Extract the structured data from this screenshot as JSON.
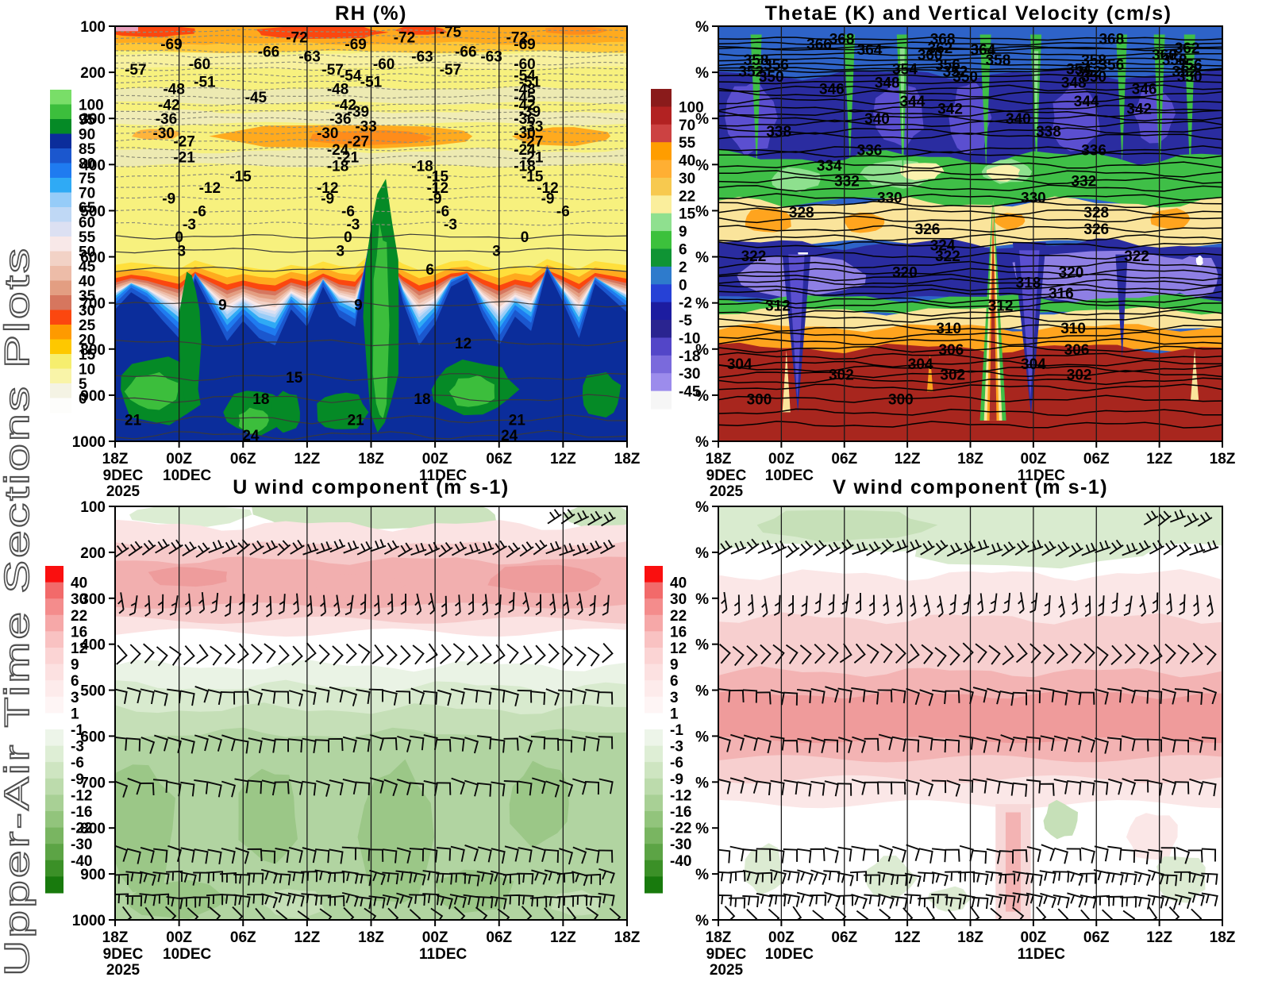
{
  "sidebar_title": "Upper-Air Time Sections Plots",
  "time_axis": {
    "tick_labels": [
      "18Z",
      "00Z",
      "06Z",
      "12Z",
      "18Z",
      "00Z",
      "06Z",
      "12Z",
      "18Z"
    ],
    "date_labels": [
      {
        "tick_index": 0,
        "lines": [
          "9DEC",
          "2025"
        ]
      },
      {
        "tick_index": 1,
        "lines": [
          "10DEC"
        ]
      },
      {
        "tick_index": 5,
        "lines": [
          "11DEC"
        ]
      }
    ]
  },
  "chart_data": [
    {
      "id": "rh",
      "type": "heatmap",
      "title": "RH (%)",
      "y_tick_labels": [
        "100",
        "200",
        "300",
        "400",
        "500",
        "600",
        "700",
        "800",
        "900",
        "1000"
      ],
      "colorbar": {
        "colors": [
          "#79DE68",
          "#3CBE3C",
          "#058A26",
          "#0B2D9B",
          "#1B57CE",
          "#1F7BF0",
          "#2FAAF5",
          "#96CCF8",
          "#BFD8F5",
          "#DCE0F2",
          "#F8E8E8",
          "#F2D2C6",
          "#EDBCA8",
          "#E39E82",
          "#D6765E",
          "#FB470F",
          "#FE9A00",
          "#FEC800",
          "#F6EE6E",
          "#F9F4A8",
          "#F4F3E4",
          "#FDFDFB"
        ],
        "labels": [
          "100",
          "95",
          "90",
          "85",
          "80",
          "75",
          "70",
          "65",
          "60",
          "55",
          "50",
          "45",
          "40",
          "35",
          "30",
          "25",
          "20",
          "15",
          "10",
          "5",
          "0"
        ]
      },
      "contour_labels": [
        {
          "v": "-75",
          "y": 0.012,
          "xs": [
            0.655
          ]
        },
        {
          "v": "-72",
          "y": 0.026,
          "xs": [
            0.355,
            0.565,
            0.785
          ]
        },
        {
          "v": "-69",
          "y": 0.042,
          "xs": [
            0.11,
            0.47,
            0.8
          ]
        },
        {
          "v": "-66",
          "y": 0.06,
          "xs": [
            0.3,
            0.685
          ]
        },
        {
          "v": "-63",
          "y": 0.072,
          "xs": [
            0.38,
            0.6,
            0.735
          ]
        },
        {
          "v": "-60",
          "y": 0.09,
          "xs": [
            0.165,
            0.525,
            0.8
          ]
        },
        {
          "v": "-57",
          "y": 0.103,
          "xs": [
            0.04,
            0.425,
            0.655
          ]
        },
        {
          "v": "-54",
          "y": 0.118,
          "xs": [
            0.46,
            0.8
          ]
        },
        {
          "v": "-51",
          "y": 0.133,
          "xs": [
            0.175,
            0.5,
            0.81
          ]
        },
        {
          "v": "-48",
          "y": 0.15,
          "xs": [
            0.115,
            0.435,
            0.8
          ]
        },
        {
          "v": "-45",
          "y": 0.17,
          "xs": [
            0.275,
            0.8
          ]
        },
        {
          "v": "-42",
          "y": 0.188,
          "xs": [
            0.105,
            0.45,
            0.8
          ]
        },
        {
          "v": "-39",
          "y": 0.205,
          "xs": [
            0.475,
            0.81
          ]
        },
        {
          "v": "-36",
          "y": 0.222,
          "xs": [
            0.1,
            0.44,
            0.8
          ]
        },
        {
          "v": "-33",
          "y": 0.24,
          "xs": [
            0.49,
            0.815
          ]
        },
        {
          "v": "-30",
          "y": 0.256,
          "xs": [
            0.095,
            0.415,
            0.8
          ]
        },
        {
          "v": "-27",
          "y": 0.276,
          "xs": [
            0.135,
            0.475,
            0.815
          ]
        },
        {
          "v": "-24",
          "y": 0.296,
          "xs": [
            0.435,
            0.8
          ]
        },
        {
          "v": "-21",
          "y": 0.315,
          "xs": [
            0.135,
            0.455,
            0.815
          ]
        },
        {
          "v": "-18",
          "y": 0.336,
          "xs": [
            0.435,
            0.6,
            0.8
          ]
        },
        {
          "v": "-15",
          "y": 0.36,
          "xs": [
            0.245,
            0.63,
            0.815
          ]
        },
        {
          "v": "-12",
          "y": 0.388,
          "xs": [
            0.185,
            0.415,
            0.63,
            0.845
          ]
        },
        {
          "v": "-9",
          "y": 0.414,
          "xs": [
            0.105,
            0.415,
            0.625,
            0.845
          ]
        },
        {
          "v": "-6",
          "y": 0.445,
          "xs": [
            0.165,
            0.455,
            0.64,
            0.875
          ]
        },
        {
          "v": "-3",
          "y": 0.476,
          "xs": [
            0.145,
            0.465,
            0.655
          ]
        },
        {
          "v": "0",
          "y": 0.507,
          "xs": [
            0.125,
            0.455,
            0.8
          ]
        },
        {
          "v": "3",
          "y": 0.54,
          "xs": [
            0.13,
            0.44,
            0.745
          ]
        },
        {
          "v": "6",
          "y": 0.585,
          "xs": [
            0.615
          ]
        },
        {
          "v": "9",
          "y": 0.67,
          "xs": [
            0.21,
            0.475
          ]
        },
        {
          "v": "12",
          "y": 0.763,
          "xs": [
            0.68
          ]
        },
        {
          "v": "15",
          "y": 0.845,
          "xs": [
            0.35
          ]
        },
        {
          "v": "18",
          "y": 0.897,
          "xs": [
            0.285,
            0.6
          ]
        },
        {
          "v": "21",
          "y": 0.947,
          "xs": [
            0.035,
            0.47,
            0.785
          ]
        },
        {
          "v": "24",
          "y": 0.985,
          "xs": [
            0.265,
            0.77
          ]
        }
      ]
    },
    {
      "id": "thetae",
      "type": "heatmap",
      "title": "ThetaE (K) and Vertical Velocity (cm/s)",
      "y_tick_labels": [
        "%",
        "%",
        "%",
        "%",
        "%",
        "%",
        "%",
        "%",
        "%",
        "%"
      ],
      "colorbar": {
        "colors": [
          "#8A1B1B",
          "#B22222",
          "#CC4242",
          "#FF9D00",
          "#FFAF33",
          "#F7C94F",
          "#FAEE9C",
          "#8FE08F",
          "#3CC13C",
          "#0F9434",
          "#2E7BCC",
          "#2641D6",
          "#1C1CA0",
          "#2A2490",
          "#5346C8",
          "#7A6ADC",
          "#9C8CEC",
          "#F6F6F6"
        ],
        "labels": [
          "100",
          "70",
          "55",
          "40",
          "30",
          "22",
          "15",
          "9",
          "6",
          "2",
          "0",
          "-2",
          "-5",
          "-10",
          "-18",
          "-30",
          "-45"
        ]
      },
      "contour_labels": [
        {
          "v": "368",
          "y": 0.03,
          "xs": [
            0.245,
            0.445,
            0.78
          ]
        },
        {
          "v": "366",
          "y": 0.042,
          "xs": [
            0.2
          ]
        },
        {
          "v": "364",
          "y": 0.055,
          "xs": [
            0.3,
            0.525
          ]
        },
        {
          "v": "362",
          "y": 0.052,
          "xs": [
            0.44,
            0.93
          ]
        },
        {
          "v": "360",
          "y": 0.068,
          "xs": [
            0.42,
            0.885
          ]
        },
        {
          "v": "358",
          "y": 0.08,
          "xs": [
            0.075,
            0.555,
            0.745,
            0.905
          ]
        },
        {
          "v": "356",
          "y": 0.092,
          "xs": [
            0.115,
            0.455,
            0.78,
            0.935
          ]
        },
        {
          "v": "354",
          "y": 0.102,
          "xs": [
            0.37,
            0.715
          ]
        },
        {
          "v": "352",
          "y": 0.108,
          "xs": [
            0.065,
            0.47,
            0.735,
            0.925
          ]
        },
        {
          "v": "350",
          "y": 0.12,
          "xs": [
            0.105,
            0.49,
            0.745,
            0.935
          ]
        },
        {
          "v": "348",
          "y": 0.135,
          "xs": [
            0.335,
            0.705
          ]
        },
        {
          "v": "346",
          "y": 0.15,
          "xs": [
            0.225,
            0.845
          ]
        },
        {
          "v": "344",
          "y": 0.18,
          "xs": [
            0.385,
            0.73
          ]
        },
        {
          "v": "342",
          "y": 0.198,
          "xs": [
            0.46,
            0.835
          ]
        },
        {
          "v": "340",
          "y": 0.222,
          "xs": [
            0.315,
            0.595
          ]
        },
        {
          "v": "338",
          "y": 0.252,
          "xs": [
            0.12,
            0.655
          ]
        },
        {
          "v": "336",
          "y": 0.297,
          "xs": [
            0.3,
            0.745
          ]
        },
        {
          "v": "334",
          "y": 0.335,
          "xs": [
            0.22
          ]
        },
        {
          "v": "332",
          "y": 0.372,
          "xs": [
            0.255,
            0.725
          ]
        },
        {
          "v": "330",
          "y": 0.412,
          "xs": [
            0.34,
            0.625
          ]
        },
        {
          "v": "328",
          "y": 0.447,
          "xs": [
            0.165,
            0.75
          ]
        },
        {
          "v": "326",
          "y": 0.488,
          "xs": [
            0.415,
            0.75
          ]
        },
        {
          "v": "324",
          "y": 0.527,
          "xs": [
            0.445
          ]
        },
        {
          "v": "322",
          "y": 0.553,
          "xs": [
            0.07,
            0.455,
            0.83
          ]
        },
        {
          "v": "320",
          "y": 0.592,
          "xs": [
            0.37,
            0.7
          ]
        },
        {
          "v": "318",
          "y": 0.617,
          "xs": [
            0.615
          ]
        },
        {
          "v": "316",
          "y": 0.642,
          "xs": [
            0.68
          ]
        },
        {
          "v": "312",
          "y": 0.672,
          "xs": [
            0.118,
            0.56
          ]
        },
        {
          "v": "310",
          "y": 0.727,
          "xs": [
            0.457,
            0.704
          ]
        },
        {
          "v": "306",
          "y": 0.778,
          "xs": [
            0.462,
            0.711
          ]
        },
        {
          "v": "304",
          "y": 0.813,
          "xs": [
            0.042,
            0.401,
            0.625
          ]
        },
        {
          "v": "302",
          "y": 0.838,
          "xs": [
            0.244,
            0.465,
            0.716
          ]
        },
        {
          "v": "300",
          "y": 0.898,
          "xs": [
            0.081,
            0.362
          ]
        }
      ]
    },
    {
      "id": "u",
      "type": "heatmap",
      "title": "U wind component (m s-1)",
      "y_tick_labels": [
        "100",
        "200",
        "300",
        "400",
        "500",
        "600",
        "700",
        "800",
        "900",
        "1000"
      ],
      "colorbar": {
        "colors": [
          "#FA0F0F",
          "#F26A6A",
          "#F48C8C",
          "#F6A8A8",
          "#F9C2C2",
          "#FBD4D4",
          "#FCE1E1",
          "#FDEBEB",
          "#FEF5F5",
          "#FFFFFF",
          "#EDF5E9",
          "#DEEED5",
          "#CEE5C1",
          "#BCDBAC",
          "#A8D095",
          "#92C47C",
          "#79B561",
          "#5CA445",
          "#3B9027",
          "#187A0D"
        ],
        "labels": [
          "40",
          "30",
          "22",
          "16",
          "12",
          "9",
          "6",
          "3",
          "1",
          "-1",
          "-3",
          "-6",
          "-9",
          "-12",
          "-16",
          "-22",
          "-30",
          "-40",
          ""
        ]
      },
      "barb_levels_hpa": [
        "200",
        "300",
        "400",
        "500",
        "600",
        "700",
        "850",
        "900",
        "950",
        "1000"
      ],
      "contour_labels": []
    },
    {
      "id": "v",
      "type": "heatmap",
      "title": "V wind component (m s-1)",
      "y_tick_labels": [
        "%",
        "%",
        "%",
        "%",
        "%",
        "%",
        "%",
        "%",
        "%",
        "%"
      ],
      "colorbar": {
        "colors": [
          "#FA0F0F",
          "#F26A6A",
          "#F48C8C",
          "#F6A8A8",
          "#F9C2C2",
          "#FBD4D4",
          "#FCE1E1",
          "#FDEBEB",
          "#FEF5F5",
          "#FFFFFF",
          "#EDF5E9",
          "#DEEED5",
          "#CEE5C1",
          "#BCDBAC",
          "#A8D095",
          "#92C47C",
          "#79B561",
          "#5CA445",
          "#3B9027",
          "#187A0D"
        ],
        "labels": [
          "40",
          "30",
          "22",
          "16",
          "12",
          "9",
          "6",
          "3",
          "1",
          "-1",
          "-3",
          "-6",
          "-9",
          "-12",
          "-16",
          "-22",
          "-30",
          "-40",
          ""
        ]
      },
      "barb_levels_hpa": [
        "200",
        "300",
        "400",
        "500",
        "600",
        "700",
        "850",
        "900",
        "950",
        "1000"
      ],
      "contour_labels": []
    }
  ]
}
